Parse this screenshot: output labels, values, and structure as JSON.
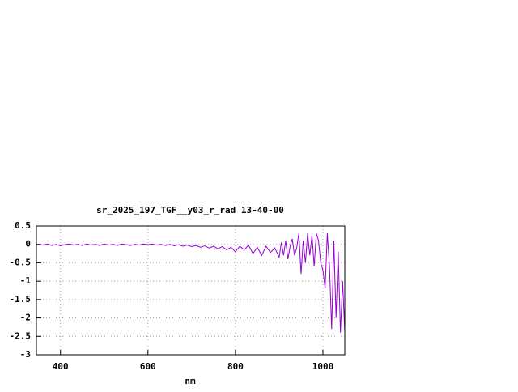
{
  "chart_data": {
    "type": "line",
    "title": "sr_2025_197_TGF__y03_r_rad 13-40-00",
    "x_label": "nm",
    "x": [
      350,
      360,
      370,
      380,
      390,
      400,
      410,
      420,
      430,
      440,
      450,
      460,
      470,
      480,
      490,
      500,
      510,
      520,
      530,
      540,
      550,
      560,
      570,
      580,
      590,
      600,
      610,
      620,
      630,
      640,
      650,
      660,
      670,
      680,
      690,
      700,
      710,
      720,
      730,
      740,
      750,
      760,
      770,
      780,
      790,
      800,
      810,
      820,
      830,
      840,
      850,
      860,
      870,
      880,
      890,
      900,
      905,
      910,
      915,
      920,
      925,
      930,
      935,
      940,
      945,
      950,
      955,
      960,
      965,
      970,
      975,
      980,
      985,
      990,
      995,
      1000,
      1005,
      1010,
      1015,
      1020,
      1025,
      1030,
      1035,
      1040,
      1045,
      1050
    ],
    "series": [
      {
        "color": "#9400d3",
        "values": [
          0,
          -0.02,
          0.01,
          -0.03,
          0,
          -0.04,
          -0.01,
          0.01,
          -0.02,
          0,
          -0.03,
          0.01,
          -0.02,
          0,
          -0.03,
          0.01,
          -0.02,
          0,
          -0.03,
          0.01,
          -0.01,
          -0.03,
          0,
          -0.02,
          0.01,
          -0.01,
          0.01,
          -0.02,
          0,
          -0.03,
          0,
          -0.04,
          -0.01,
          -0.05,
          -0.02,
          -0.06,
          -0.03,
          -0.08,
          -0.04,
          -0.1,
          -0.05,
          -0.12,
          -0.06,
          -0.15,
          -0.08,
          -0.2,
          -0.05,
          -0.15,
          -0.02,
          -0.25,
          -0.08,
          -0.3,
          -0.05,
          -0.22,
          -0.1,
          -0.35,
          0.05,
          -0.3,
          0.1,
          -0.4,
          -0.05,
          0.15,
          -0.3,
          -0.1,
          0.3,
          -0.8,
          0.1,
          -0.5,
          0.3,
          -0.3,
          0.25,
          -0.6,
          0.3,
          0.1,
          -0.5,
          -0.7,
          -1.2,
          0.3,
          -0.6,
          -2.3,
          0.1,
          -2.0,
          -0.2,
          -2.4,
          -1.0,
          -2.4
        ]
      }
    ],
    "xlim": [
      345,
      1050
    ],
    "ylim": [
      -3,
      0.5
    ],
    "xticks": [
      400,
      600,
      800,
      1000
    ],
    "yticks": [
      0.5,
      0,
      -0.5,
      -1,
      -1.5,
      -2,
      -2.5,
      -3
    ],
    "grid": true
  }
}
